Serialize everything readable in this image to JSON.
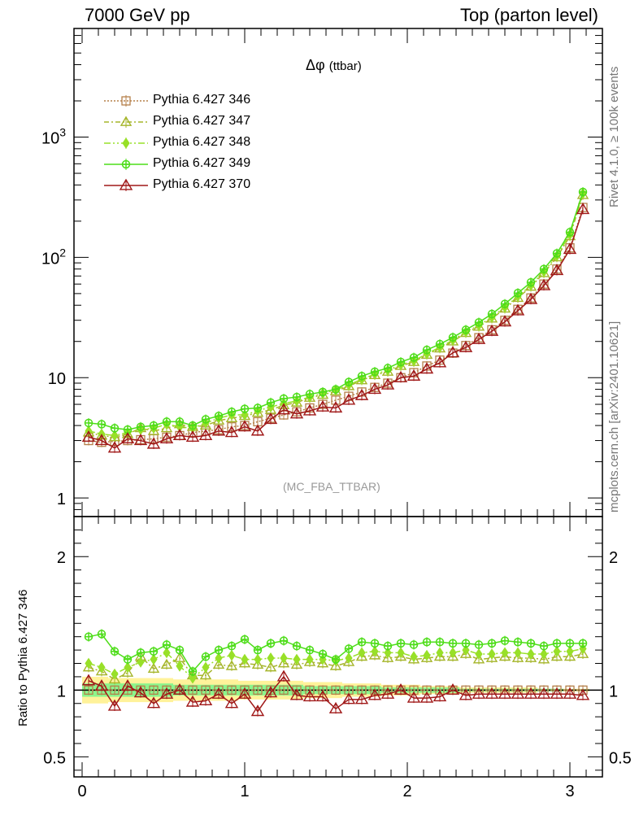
{
  "header": {
    "left": "7000 GeV pp",
    "right": "Top (parton level)"
  },
  "side_labels": {
    "rivet": "Rivet 4.1.0, ≥ 100k events",
    "mcplots": "mcplots.cern.ch [arXiv:2401.10621]"
  },
  "plot_title": {
    "main": "Δφ",
    "sub": "(ttbar)"
  },
  "analysis_label": "(MC_FBA_TTBAR)",
  "ratio_ylabel": "Ratio to Pythia 6.427 346",
  "chart_data": {
    "type": "line",
    "title": "Δφ (ttbar)",
    "xlabel": "",
    "ylabel": "",
    "xlim": [
      -0.05,
      3.2
    ],
    "ylim": [
      0.7,
      8000
    ],
    "yscale": "log",
    "ratio_ylim": [
      0.35,
      2.3
    ],
    "x_ticks": [
      0,
      1,
      2,
      3
    ],
    "y_tick_labels": [
      "1",
      "10",
      "10^3",
      "10^2"
    ],
    "ratio_tick_labels": [
      "0.5",
      "1",
      "2"
    ],
    "x": [
      0.04,
      0.12,
      0.2,
      0.28,
      0.36,
      0.44,
      0.52,
      0.6,
      0.68,
      0.76,
      0.84,
      0.92,
      1.0,
      1.08,
      1.16,
      1.24,
      1.32,
      1.4,
      1.48,
      1.56,
      1.64,
      1.72,
      1.8,
      1.88,
      1.96,
      2.04,
      2.12,
      2.2,
      2.28,
      2.36,
      2.44,
      2.52,
      2.6,
      2.68,
      2.76,
      2.84,
      2.92,
      3.0,
      3.08
    ],
    "series": [
      {
        "name": "Pythia 6.427 346",
        "color": "#b5804a",
        "marker": "square",
        "dash": "2,2",
        "values": [
          3.0,
          2.9,
          2.95,
          3.0,
          3.05,
          3.1,
          3.2,
          3.3,
          3.5,
          3.6,
          3.7,
          3.9,
          4.0,
          4.3,
          4.6,
          4.9,
          5.2,
          5.6,
          6.0,
          6.5,
          7.0,
          7.6,
          8.3,
          9.0,
          10.0,
          11.0,
          12.5,
          14.0,
          16.0,
          18.5,
          21.5,
          25.0,
          30.0,
          37.0,
          46.0,
          60.0,
          80.0,
          120.0,
          260.0
        ]
      },
      {
        "name": "Pythia 6.427 347",
        "color": "#a5b52a",
        "marker": "triangle",
        "dash": "6,3,2,3",
        "values": [
          3.5,
          3.3,
          3.2,
          3.4,
          3.8,
          3.6,
          3.8,
          4.1,
          3.9,
          4.0,
          4.4,
          4.6,
          4.8,
          5.1,
          5.4,
          5.9,
          6.2,
          6.8,
          7.2,
          7.7,
          8.5,
          9.5,
          10.5,
          11.2,
          12.5,
          13.5,
          15.5,
          17.5,
          20.0,
          23.5,
          26.5,
          31.0,
          37.5,
          46.0,
          57.0,
          74.0,
          100.0,
          150.0,
          330.0
        ]
      },
      {
        "name": "Pythia 6.427 348",
        "color": "#98e028",
        "marker": "diamond",
        "dash": "8,3,2,3,2,3",
        "values": [
          3.6,
          3.4,
          3.3,
          3.5,
          3.7,
          3.8,
          4.1,
          3.9,
          3.8,
          4.2,
          4.6,
          4.9,
          4.9,
          5.3,
          5.7,
          6.1,
          6.4,
          6.9,
          7.4,
          7.9,
          8.7,
          9.7,
          10.7,
          11.5,
          12.8,
          13.8,
          15.8,
          17.9,
          20.5,
          24.0,
          27.2,
          31.8,
          38.5,
          47.5,
          58.5,
          76.0,
          103.0,
          155.0,
          340.0
        ]
      },
      {
        "name": "Pythia 6.427 349",
        "color": "#4ddd18",
        "marker": "circleplus",
        "dash": "",
        "values": [
          4.2,
          4.1,
          3.8,
          3.7,
          3.9,
          4.0,
          4.3,
          4.3,
          4.0,
          4.5,
          4.8,
          5.2,
          5.5,
          5.6,
          6.2,
          6.7,
          6.9,
          7.3,
          7.6,
          8.0,
          9.2,
          10.3,
          11.2,
          12.0,
          13.5,
          14.7,
          17.0,
          19.0,
          21.6,
          25.0,
          28.8,
          33.8,
          41.0,
          50.5,
          62.0,
          80.0,
          108.0,
          162.0,
          350.0
        ]
      },
      {
        "name": "Pythia 6.427 370",
        "color": "#a01818",
        "marker": "triangle-open",
        "dash": "",
        "values": [
          3.2,
          3.0,
          2.6,
          3.1,
          3.0,
          2.8,
          3.1,
          3.3,
          3.2,
          3.3,
          3.6,
          3.5,
          3.9,
          3.6,
          4.5,
          5.4,
          5.0,
          5.3,
          5.7,
          5.6,
          6.5,
          7.1,
          8.0,
          8.7,
          10.0,
          10.3,
          11.8,
          13.3,
          16.1,
          17.8,
          20.8,
          24.3,
          29.1,
          36.0,
          44.7,
          58.2,
          77.8,
          116.5,
          250.0
        ]
      }
    ],
    "ratio_series": [
      {
        "name": "Pythia 6.427 346",
        "values": [
          1,
          1,
          1,
          1,
          1,
          1,
          1,
          1,
          1,
          1,
          1,
          1,
          1,
          1,
          1,
          1,
          1,
          1,
          1,
          1,
          1,
          1,
          1,
          1,
          1,
          1,
          1,
          1,
          1,
          1,
          1,
          1,
          1,
          1,
          1,
          1,
          1,
          1,
          1
        ]
      },
      {
        "name": "Pythia 6.427 347",
        "values": [
          1.17,
          1.14,
          1.08,
          1.13,
          1.25,
          1.16,
          1.19,
          1.24,
          1.11,
          1.11,
          1.19,
          1.18,
          1.2,
          1.19,
          1.17,
          1.2,
          1.19,
          1.21,
          1.2,
          1.18,
          1.21,
          1.25,
          1.26,
          1.24,
          1.25,
          1.23,
          1.24,
          1.25,
          1.25,
          1.27,
          1.23,
          1.24,
          1.25,
          1.24,
          1.24,
          1.23,
          1.25,
          1.25,
          1.27
        ]
      },
      {
        "name": "Pythia 6.427 348",
        "values": [
          1.2,
          1.17,
          1.12,
          1.17,
          1.21,
          1.23,
          1.28,
          1.18,
          1.09,
          1.17,
          1.24,
          1.26,
          1.23,
          1.23,
          1.24,
          1.24,
          1.23,
          1.23,
          1.23,
          1.22,
          1.24,
          1.28,
          1.29,
          1.28,
          1.28,
          1.25,
          1.26,
          1.28,
          1.28,
          1.3,
          1.27,
          1.27,
          1.28,
          1.28,
          1.27,
          1.27,
          1.29,
          1.29,
          1.31
        ]
      },
      {
        "name": "Pythia 6.427 349",
        "values": [
          1.4,
          1.42,
          1.29,
          1.23,
          1.28,
          1.29,
          1.34,
          1.3,
          1.14,
          1.25,
          1.3,
          1.33,
          1.38,
          1.3,
          1.35,
          1.37,
          1.33,
          1.3,
          1.27,
          1.23,
          1.31,
          1.36,
          1.35,
          1.33,
          1.35,
          1.34,
          1.36,
          1.36,
          1.35,
          1.35,
          1.34,
          1.35,
          1.37,
          1.36,
          1.35,
          1.33,
          1.35,
          1.35,
          1.35
        ]
      },
      {
        "name": "Pythia 6.427 370",
        "values": [
          1.07,
          1.03,
          0.88,
          1.03,
          0.98,
          0.9,
          0.97,
          1.0,
          0.91,
          0.92,
          0.97,
          0.9,
          0.97,
          0.84,
          0.98,
          1.1,
          0.96,
          0.95,
          0.95,
          0.86,
          0.93,
          0.93,
          0.96,
          0.97,
          1.0,
          0.94,
          0.94,
          0.95,
          1.0,
          0.96,
          0.97,
          0.97,
          0.97,
          0.97,
          0.97,
          0.97,
          0.97,
          0.97,
          0.96
        ]
      }
    ],
    "ratio_band_yellow": [
      0.1,
      0.1,
      0.09,
      0.09,
      0.09,
      0.09,
      0.09,
      0.08,
      0.08,
      0.08,
      0.08,
      0.08,
      0.07,
      0.07,
      0.07,
      0.07,
      0.07,
      0.06,
      0.06,
      0.06,
      0.05,
      0.05,
      0.05,
      0.04,
      0.04,
      0.04,
      0.03,
      0.03,
      0.03,
      0.02,
      0.02,
      0.02,
      0.02,
      0.02,
      0.02,
      0.01,
      0.01,
      0.01,
      0.01
    ],
    "ratio_band_green": [
      0.05,
      0.05,
      0.05,
      0.05,
      0.05,
      0.05,
      0.05,
      0.04,
      0.04,
      0.04,
      0.04,
      0.04,
      0.04,
      0.04,
      0.04,
      0.04,
      0.04,
      0.03,
      0.03,
      0.03,
      0.03,
      0.03,
      0.03,
      0.02,
      0.02,
      0.02,
      0.02,
      0.02,
      0.02,
      0.01,
      0.01,
      0.01,
      0.01,
      0.01,
      0.01,
      0.01,
      0.01,
      0.005,
      0.005
    ]
  }
}
